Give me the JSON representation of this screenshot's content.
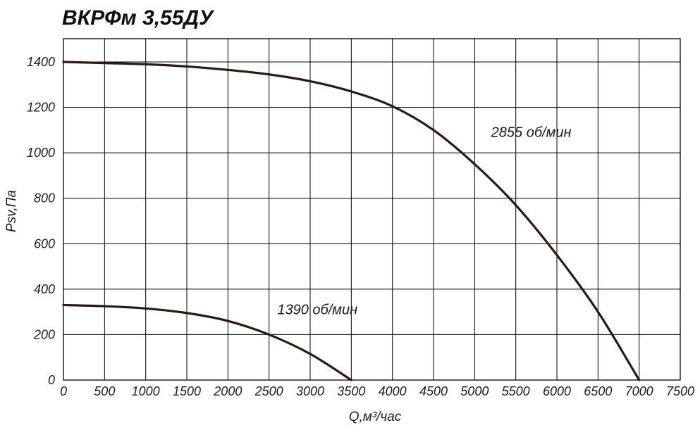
{
  "chart_data": {
    "type": "line",
    "title": "ВКРФм 3,55ДУ",
    "xlabel": "Q,м³/час",
    "ylabel": "Psv,Па",
    "xlim": [
      0,
      7500
    ],
    "ylim": [
      0,
      1400
    ],
    "x_ticks": [
      "0",
      "500",
      "1000",
      "1500",
      "2000",
      "2500",
      "3000",
      "3500",
      "4000",
      "4500",
      "5000",
      "5500",
      "6000",
      "6500",
      "7000",
      "7500"
    ],
    "y_ticks": [
      "0",
      "200",
      "400",
      "600",
      "800",
      "1000",
      "1200",
      "1400"
    ],
    "grid": true,
    "series": [
      {
        "name": "2855 об/мин",
        "color": "#2a1a12",
        "x": [
          0,
          500,
          1000,
          1500,
          2000,
          2500,
          3000,
          3500,
          4000,
          4500,
          5000,
          5500,
          6000,
          6500,
          7000
        ],
        "y": [
          1400,
          1395,
          1390,
          1380,
          1365,
          1345,
          1315,
          1270,
          1205,
          1100,
          950,
          770,
          550,
          300,
          0
        ]
      },
      {
        "name": "1390 об/мин",
        "color": "#2a1a12",
        "x": [
          0,
          500,
          1000,
          1500,
          2000,
          2500,
          3000,
          3500
        ],
        "y": [
          330,
          325,
          315,
          295,
          260,
          200,
          115,
          0
        ]
      }
    ]
  }
}
